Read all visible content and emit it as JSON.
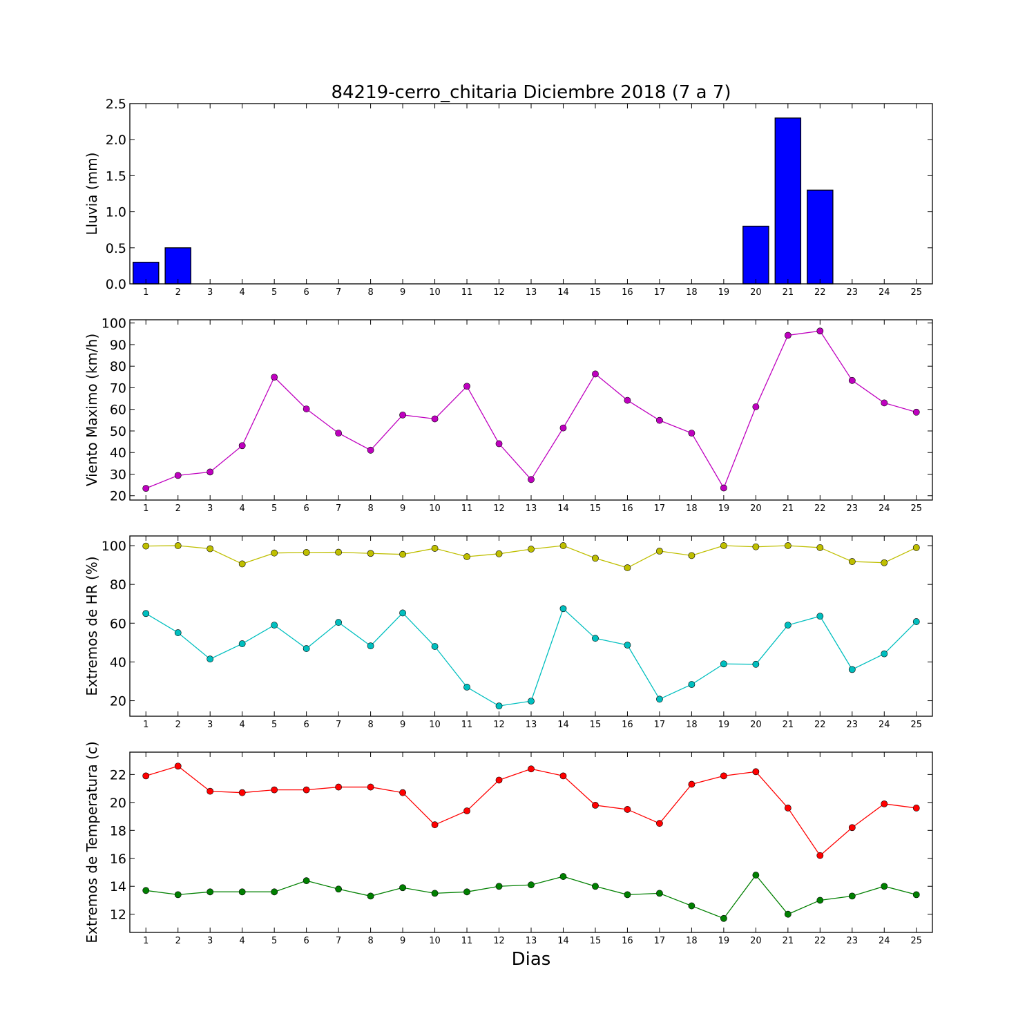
{
  "title": "84219-cerro_chitaria Diciembre 2018  (7 a 7)",
  "xlabel": "Dias",
  "chart_data": [
    {
      "type": "bar",
      "ylabel": "Lluvia (mm)",
      "ylim": [
        0,
        2.5
      ],
      "yticks": [
        0.0,
        0.5,
        1.0,
        1.5,
        2.0,
        2.5
      ],
      "ytick_labels": [
        "0.0",
        "0.5",
        "1.0",
        "1.5",
        "2.0",
        "2.5"
      ],
      "x": [
        1,
        2,
        3,
        4,
        5,
        6,
        7,
        8,
        9,
        10,
        11,
        12,
        13,
        14,
        15,
        16,
        17,
        18,
        19,
        20,
        21,
        22,
        23,
        24,
        25
      ],
      "series": [
        {
          "values": [
            0.3,
            0.5,
            0,
            0,
            0,
            0,
            0,
            0,
            0,
            0,
            0,
            0,
            0,
            0,
            0,
            0,
            0,
            0,
            0,
            0.8,
            2.3,
            1.3,
            0,
            0,
            0
          ],
          "color": "#0000ff"
        }
      ]
    },
    {
      "type": "line",
      "ylabel": "Viento Maximo (km/h)",
      "ylim": [
        18,
        101.5
      ],
      "yticks": [
        20,
        30,
        40,
        50,
        60,
        70,
        80,
        90,
        100
      ],
      "ytick_labels": [
        "20",
        "30",
        "40",
        "50",
        "60",
        "70",
        "80",
        "90",
        "100"
      ],
      "x": [
        1,
        2,
        3,
        4,
        5,
        6,
        7,
        8,
        9,
        10,
        11,
        12,
        13,
        14,
        15,
        16,
        17,
        18,
        19,
        20,
        21,
        22,
        23,
        24,
        25
      ],
      "series": [
        {
          "values": [
            23.4,
            29.4,
            31.0,
            43.2,
            74.9,
            60.2,
            49.0,
            41.1,
            57.4,
            55.6,
            70.7,
            44.1,
            27.5,
            51.4,
            76.4,
            64.2,
            54.9,
            49.0,
            23.6,
            61.2,
            94.3,
            96.3,
            73.4,
            63.0,
            58.7
          ],
          "color": "#bf00bf"
        }
      ]
    },
    {
      "type": "line",
      "ylabel": "Extremos de HR (%)",
      "ylim": [
        12,
        105
      ],
      "yticks": [
        20,
        40,
        60,
        80,
        100
      ],
      "ytick_labels": [
        "20",
        "40",
        "60",
        "80",
        "100"
      ],
      "x": [
        1,
        2,
        3,
        4,
        5,
        6,
        7,
        8,
        9,
        10,
        11,
        12,
        13,
        14,
        15,
        16,
        17,
        18,
        19,
        20,
        21,
        22,
        23,
        24,
        25
      ],
      "series": [
        {
          "values": [
            99.8,
            100.0,
            98.4,
            90.6,
            96.2,
            96.5,
            96.6,
            96.0,
            95.5,
            98.6,
            94.3,
            95.8,
            98.2,
            100.0,
            93.5,
            88.6,
            97.2,
            94.9,
            100.0,
            99.4,
            100.0,
            99.0,
            91.8,
            91.2,
            99.0
          ],
          "color": "#bfbf00"
        },
        {
          "values": [
            65.0,
            55.1,
            41.5,
            49.4,
            59.0,
            46.9,
            60.4,
            48.3,
            65.3,
            48.0,
            27.0,
            17.3,
            19.8,
            67.5,
            52.2,
            48.7,
            20.8,
            28.4,
            39.0,
            38.8,
            59.0,
            63.6,
            36.1,
            44.2,
            60.8
          ],
          "color": "#00bfbf"
        }
      ]
    },
    {
      "type": "line",
      "ylabel": "Extremos de Temperatura (c)",
      "ylim": [
        10.7,
        23.6
      ],
      "yticks": [
        12,
        14,
        16,
        18,
        20,
        22
      ],
      "ytick_labels": [
        "12",
        "14",
        "16",
        "18",
        "20",
        "22"
      ],
      "x": [
        1,
        2,
        3,
        4,
        5,
        6,
        7,
        8,
        9,
        10,
        11,
        12,
        13,
        14,
        15,
        16,
        17,
        18,
        19,
        20,
        21,
        22,
        23,
        24,
        25
      ],
      "series": [
        {
          "values": [
            21.9,
            22.6,
            20.8,
            20.7,
            20.9,
            20.9,
            21.1,
            21.1,
            20.7,
            18.4,
            19.4,
            21.6,
            22.4,
            21.9,
            19.8,
            19.5,
            18.5,
            21.3,
            21.9,
            22.2,
            19.6,
            16.2,
            18.2,
            19.9,
            19.6
          ],
          "color": "#ff0000"
        },
        {
          "values": [
            13.7,
            13.4,
            13.6,
            13.6,
            13.6,
            14.4,
            13.8,
            13.3,
            13.9,
            13.5,
            13.6,
            14.0,
            14.1,
            14.7,
            14.0,
            13.4,
            13.5,
            12.6,
            11.7,
            14.8,
            12.0,
            13.0,
            13.3,
            14.0,
            13.4
          ],
          "color": "#008000"
        }
      ]
    }
  ]
}
